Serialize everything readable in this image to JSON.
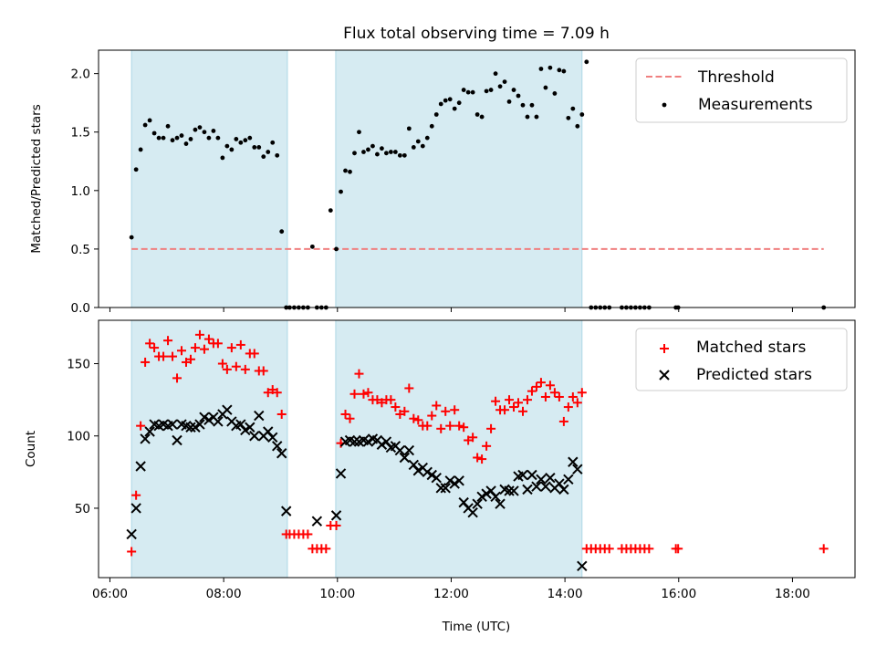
{
  "chart_data": [
    {
      "type": "scatter",
      "title": "Flux total observing time = 7.09 h",
      "xlabel": "",
      "ylabel": "Matched/Predicted stars",
      "xlim": [
        5.8,
        19.1
      ],
      "ylim": [
        0,
        2.2
      ],
      "yticks": [
        0.0,
        0.5,
        1.0,
        1.5,
        2.0
      ],
      "ytick_labels": [
        "0.0",
        "0.5",
        "1.0",
        "1.5",
        "2.0"
      ],
      "legend_position": "top-right",
      "shaded_intervals": [
        [
          6.38,
          9.12
        ],
        [
          9.97,
          14.3
        ]
      ],
      "threshold": {
        "name": "Threshold",
        "y": 0.5,
        "x_range": [
          6.38,
          18.55
        ],
        "color": "#f08080",
        "style": "dashed"
      },
      "series": [
        {
          "name": "Measurements",
          "color": "#000000",
          "marker": "dot",
          "x": [
            6.38,
            6.46,
            6.54,
            6.62,
            6.7,
            6.78,
            6.86,
            6.94,
            7.02,
            7.1,
            7.18,
            7.26,
            7.34,
            7.42,
            7.5,
            7.58,
            7.66,
            7.74,
            7.82,
            7.9,
            7.98,
            8.06,
            8.14,
            8.22,
            8.3,
            8.38,
            8.46,
            8.54,
            8.62,
            8.7,
            8.78,
            8.86,
            8.94,
            9.02,
            9.1,
            9.16,
            9.24,
            9.32,
            9.4,
            9.48,
            9.56,
            9.64,
            9.72,
            9.8,
            9.88,
            9.98,
            10.06,
            10.14,
            10.22,
            10.3,
            10.38,
            10.46,
            10.54,
            10.62,
            10.7,
            10.78,
            10.86,
            10.94,
            11.02,
            11.1,
            11.18,
            11.26,
            11.34,
            11.42,
            11.5,
            11.58,
            11.66,
            11.74,
            11.82,
            11.9,
            11.98,
            12.06,
            12.14,
            12.22,
            12.3,
            12.38,
            12.46,
            12.54,
            12.62,
            12.7,
            12.78,
            12.86,
            12.94,
            13.02,
            13.1,
            13.18,
            13.26,
            13.34,
            13.42,
            13.5,
            13.58,
            13.66,
            13.74,
            13.82,
            13.9,
            13.98,
            14.06,
            14.14,
            14.22,
            14.3,
            14.38,
            14.46,
            14.54,
            14.62,
            14.7,
            14.78,
            15.0,
            15.08,
            15.16,
            15.24,
            15.32,
            15.4,
            15.48,
            15.95,
            15.99,
            18.55
          ],
          "y": [
            0.6,
            1.18,
            1.35,
            1.56,
            1.6,
            1.49,
            1.45,
            1.45,
            1.55,
            1.43,
            1.45,
            1.47,
            1.4,
            1.44,
            1.52,
            1.54,
            1.5,
            1.45,
            1.51,
            1.45,
            1.28,
            1.38,
            1.35,
            1.44,
            1.41,
            1.43,
            1.45,
            1.37,
            1.37,
            1.29,
            1.33,
            1.41,
            1.3,
            0.65,
            0.0,
            0.0,
            0.0,
            0.0,
            0.0,
            0.0,
            0.52,
            0.0,
            0.0,
            0.0,
            0.83,
            0.5,
            0.99,
            1.17,
            1.16,
            1.32,
            1.5,
            1.33,
            1.35,
            1.38,
            1.31,
            1.36,
            1.32,
            1.33,
            1.33,
            1.3,
            1.3,
            1.53,
            1.37,
            1.42,
            1.38,
            1.45,
            1.55,
            1.65,
            1.74,
            1.77,
            1.78,
            1.7,
            1.75,
            1.86,
            1.84,
            1.84,
            1.65,
            1.63,
            1.85,
            1.86,
            2.0,
            1.89,
            1.93,
            1.76,
            1.86,
            1.81,
            1.73,
            1.63,
            1.73,
            1.63,
            2.04,
            1.88,
            2.05,
            1.83,
            2.03,
            2.02,
            1.62,
            1.7,
            1.55,
            1.65,
            2.1,
            0.0,
            0.0,
            0.0,
            0.0,
            0.0,
            0.0,
            0.0,
            0.0,
            0.0,
            0.0,
            0.0,
            0.0,
            0.0,
            0.0,
            0.0
          ]
        }
      ]
    },
    {
      "type": "scatter",
      "title": "",
      "xlabel": "Time (UTC)",
      "ylabel": "Count",
      "xlim": [
        5.8,
        19.1
      ],
      "ylim": [
        2,
        180
      ],
      "xticks": [
        6,
        8,
        10,
        12,
        14,
        16,
        18
      ],
      "xtick_labels": [
        "06:00",
        "08:00",
        "10:00",
        "12:00",
        "14:00",
        "16:00",
        "18:00"
      ],
      "yticks": [
        50,
        100,
        150
      ],
      "ytick_labels": [
        "50",
        "100",
        "150"
      ],
      "legend_position": "top-right",
      "shaded_intervals": [
        [
          6.38,
          9.12
        ],
        [
          9.97,
          14.3
        ]
      ],
      "series": [
        {
          "name": "Matched stars",
          "color": "#ff0000",
          "marker": "plus",
          "x": [
            6.38,
            6.46,
            6.54,
            6.62,
            6.7,
            6.78,
            6.86,
            6.94,
            7.02,
            7.1,
            7.18,
            7.26,
            7.34,
            7.42,
            7.5,
            7.58,
            7.66,
            7.74,
            7.82,
            7.9,
            7.98,
            8.06,
            8.14,
            8.22,
            8.3,
            8.38,
            8.46,
            8.54,
            8.62,
            8.7,
            8.78,
            8.86,
            8.94,
            9.02,
            9.1,
            9.16,
            9.24,
            9.32,
            9.4,
            9.48,
            9.56,
            9.64,
            9.72,
            9.8,
            9.88,
            9.98,
            10.06,
            10.14,
            10.22,
            10.3,
            10.38,
            10.46,
            10.54,
            10.62,
            10.7,
            10.78,
            10.86,
            10.94,
            11.02,
            11.1,
            11.18,
            11.26,
            11.34,
            11.42,
            11.5,
            11.58,
            11.66,
            11.74,
            11.82,
            11.9,
            11.98,
            12.06,
            12.14,
            12.22,
            12.3,
            12.38,
            12.46,
            12.54,
            12.62,
            12.7,
            12.78,
            12.86,
            12.94,
            13.02,
            13.1,
            13.18,
            13.26,
            13.34,
            13.42,
            13.5,
            13.58,
            13.66,
            13.74,
            13.82,
            13.9,
            13.98,
            14.06,
            14.14,
            14.22,
            14.3,
            14.38,
            14.46,
            14.54,
            14.62,
            14.7,
            14.78,
            15.0,
            15.08,
            15.16,
            15.24,
            15.32,
            15.4,
            15.48,
            15.95,
            15.99,
            18.55
          ],
          "y": [
            20,
            59,
            107,
            151,
            164,
            161,
            155,
            155,
            166,
            155,
            140,
            159,
            151,
            153,
            161,
            170,
            160,
            167,
            164,
            164,
            150,
            146,
            161,
            148,
            163,
            146,
            157,
            157,
            145,
            145,
            130,
            132,
            130,
            115,
            32,
            32,
            32,
            32,
            32,
            32,
            22,
            22,
            22,
            22,
            38,
            38,
            95,
            115,
            112,
            129,
            143,
            129,
            130,
            125,
            125,
            123,
            125,
            125,
            120,
            115,
            117,
            133,
            112,
            111,
            107,
            107,
            114,
            121,
            105,
            117,
            107,
            118,
            107,
            106,
            97,
            99,
            85,
            84,
            93,
            105,
            124,
            118,
            118,
            125,
            120,
            123,
            117,
            125,
            131,
            134,
            137,
            127,
            135,
            130,
            127,
            110,
            120,
            127,
            123,
            130,
            22,
            22,
            22,
            22,
            22,
            22,
            22,
            22,
            22,
            22,
            22,
            22,
            22,
            22,
            22,
            22
          ]
        },
        {
          "name": "Predicted stars",
          "color": "#000000",
          "marker": "x",
          "x": [
            6.38,
            6.46,
            6.54,
            6.62,
            6.7,
            6.78,
            6.86,
            6.94,
            7.02,
            7.1,
            7.18,
            7.26,
            7.34,
            7.42,
            7.5,
            7.58,
            7.66,
            7.74,
            7.82,
            7.9,
            7.98,
            8.06,
            8.14,
            8.22,
            8.3,
            8.38,
            8.46,
            8.54,
            8.62,
            8.7,
            8.78,
            8.86,
            8.94,
            9.02,
            9.1,
            9.64,
            9.98,
            10.06,
            10.14,
            10.22,
            10.3,
            10.38,
            10.46,
            10.54,
            10.62,
            10.7,
            10.78,
            10.86,
            10.94,
            11.02,
            11.1,
            11.18,
            11.26,
            11.34,
            11.42,
            11.5,
            11.58,
            11.66,
            11.74,
            11.82,
            11.9,
            11.98,
            12.06,
            12.14,
            12.22,
            12.3,
            12.38,
            12.46,
            12.54,
            12.62,
            12.7,
            12.78,
            12.86,
            12.94,
            13.02,
            13.1,
            13.18,
            13.26,
            13.34,
            13.42,
            13.5,
            13.58,
            13.66,
            13.74,
            13.82,
            13.9,
            13.98,
            14.06,
            14.14,
            14.22,
            14.3
          ],
          "y": [
            32,
            50,
            79,
            98,
            103,
            108,
            107,
            108,
            107,
            108,
            97,
            108,
            107,
            106,
            106,
            108,
            113,
            111,
            113,
            110,
            115,
            118,
            110,
            107,
            108,
            104,
            106,
            100,
            114,
            100,
            103,
            99,
            93,
            88,
            48,
            41,
            45,
            74,
            96,
            97,
            96,
            96,
            97,
            96,
            98,
            97,
            94,
            96,
            92,
            93,
            90,
            85,
            90,
            80,
            76,
            78,
            75,
            73,
            71,
            64,
            64,
            69,
            67,
            69,
            54,
            50,
            47,
            53,
            58,
            60,
            62,
            58,
            53,
            63,
            62,
            62,
            72,
            73,
            63,
            73,
            65,
            70,
            65,
            71,
            64,
            67,
            63,
            70,
            82,
            77,
            10
          ]
        }
      ]
    }
  ]
}
